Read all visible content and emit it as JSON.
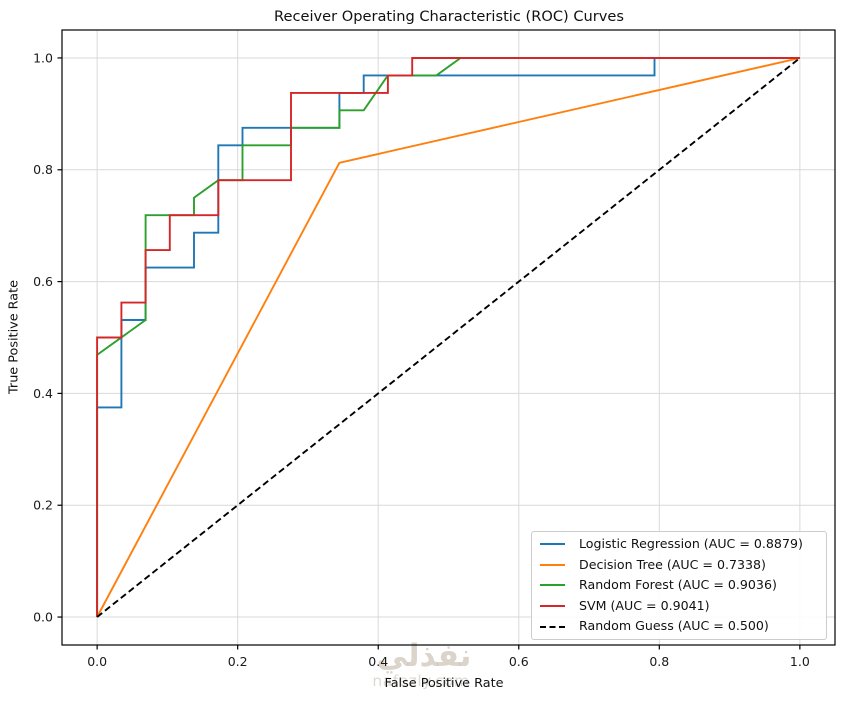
{
  "chart_data": {
    "type": "line",
    "title": "Receiver Operating Characteristic (ROC) Curves",
    "xlabel": "False Positive Rate",
    "ylabel": "True Positive Rate",
    "xlim": [
      -0.05,
      1.05
    ],
    "ylim": [
      -0.05,
      1.05
    ],
    "xticks": [
      0.0,
      0.2,
      0.4,
      0.6,
      0.8,
      1.0
    ],
    "xtick_labels": [
      "0.0",
      "0.2",
      "0.4",
      "0.6",
      "0.8",
      "1.0"
    ],
    "yticks": [
      0.0,
      0.2,
      0.4,
      0.6,
      0.8,
      1.0
    ],
    "ytick_labels": [
      "0.0",
      "0.2",
      "0.4",
      "0.6",
      "0.8",
      "1.0"
    ],
    "grid": true,
    "grid_color": "#d9d9d9",
    "frame_color": "#000000",
    "legend_position": "lower right",
    "series": [
      {
        "name": "Logistic Regression (AUC = 0.8879)",
        "auc": 0.8879,
        "color": "#1f77b4",
        "dashed": false,
        "points": [
          [
            0,
            0
          ],
          [
            0,
            0.375
          ],
          [
            0.0345,
            0.375
          ],
          [
            0.0345,
            0.5313
          ],
          [
            0.069,
            0.5313
          ],
          [
            0.069,
            0.625
          ],
          [
            0.1379,
            0.625
          ],
          [
            0.1379,
            0.6875
          ],
          [
            0.1724,
            0.6875
          ],
          [
            0.1724,
            0.8438
          ],
          [
            0.2069,
            0.8438
          ],
          [
            0.2069,
            0.875
          ],
          [
            0.3448,
            0.875
          ],
          [
            0.3448,
            0.9375
          ],
          [
            0.3793,
            0.9375
          ],
          [
            0.3793,
            0.9688
          ],
          [
            0.7931,
            0.9688
          ],
          [
            0.7931,
            1.0
          ],
          [
            1.0,
            1.0
          ]
        ]
      },
      {
        "name": "Decision Tree (AUC = 0.7338)",
        "auc": 0.7338,
        "color": "#ff7f0e",
        "dashed": false,
        "points": [
          [
            0,
            0
          ],
          [
            0.3448,
            0.8125
          ],
          [
            1.0,
            1.0
          ]
        ]
      },
      {
        "name": "Random Forest (AUC = 0.9036)",
        "auc": 0.9036,
        "color": "#2ca02c",
        "dashed": false,
        "points": [
          [
            0,
            0
          ],
          [
            0,
            0.4688
          ],
          [
            0.069,
            0.5313
          ],
          [
            0.069,
            0.7188
          ],
          [
            0.1379,
            0.7188
          ],
          [
            0.1379,
            0.75
          ],
          [
            0.1724,
            0.7813
          ],
          [
            0.2069,
            0.7813
          ],
          [
            0.2069,
            0.8438
          ],
          [
            0.2759,
            0.8438
          ],
          [
            0.2759,
            0.875
          ],
          [
            0.3448,
            0.875
          ],
          [
            0.3448,
            0.9063
          ],
          [
            0.3793,
            0.9063
          ],
          [
            0.4138,
            0.9688
          ],
          [
            0.4828,
            0.9688
          ],
          [
            0.5172,
            1.0
          ],
          [
            1.0,
            1.0
          ]
        ]
      },
      {
        "name": "SVM (AUC = 0.9041)",
        "auc": 0.9041,
        "color": "#d62728",
        "dashed": false,
        "points": [
          [
            0,
            0
          ],
          [
            0,
            0.5
          ],
          [
            0.0345,
            0.5
          ],
          [
            0.0345,
            0.5625
          ],
          [
            0.069,
            0.5625
          ],
          [
            0.069,
            0.6563
          ],
          [
            0.1034,
            0.6563
          ],
          [
            0.1034,
            0.7188
          ],
          [
            0.1724,
            0.7188
          ],
          [
            0.1724,
            0.7813
          ],
          [
            0.2759,
            0.7813
          ],
          [
            0.2759,
            0.9375
          ],
          [
            0.4138,
            0.9375
          ],
          [
            0.4138,
            0.9688
          ],
          [
            0.4483,
            0.9688
          ],
          [
            0.4483,
            1.0
          ],
          [
            1.0,
            1.0
          ]
        ]
      },
      {
        "name": "Random Guess (AUC = 0.500)",
        "auc": 0.5,
        "color": "#000000",
        "dashed": true,
        "points": [
          [
            0,
            0
          ],
          [
            1.0,
            1.0
          ]
        ]
      }
    ]
  },
  "watermark": {
    "brand_arabic": "نفذلي",
    "brand_domain": "nafezly.com"
  }
}
